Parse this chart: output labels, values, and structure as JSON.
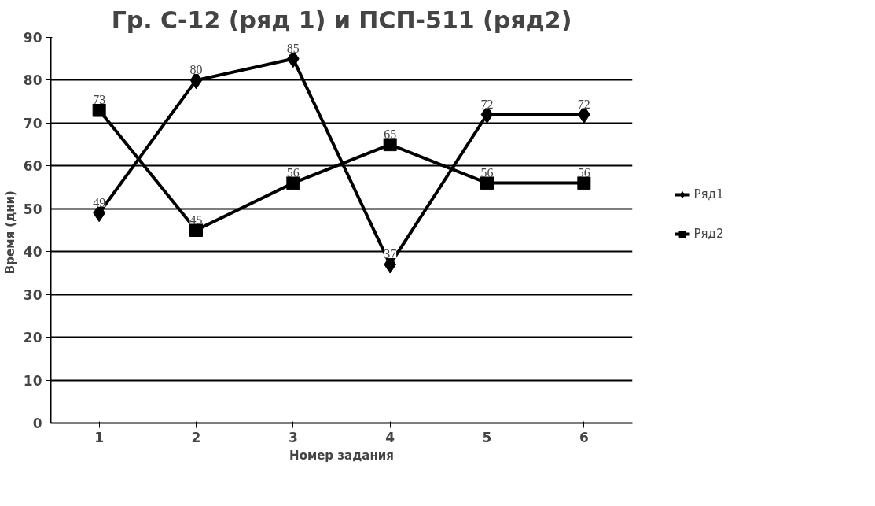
{
  "chart_data": {
    "type": "line",
    "title": "Гр. С-12 (ряд 1) и ПСП-511 (ряд2)",
    "xlabel": "Номер задания",
    "ylabel": "Время  (дни)",
    "categories": [
      "1",
      "2",
      "3",
      "4",
      "5",
      "6"
    ],
    "series": [
      {
        "name": "Ряд1",
        "color": "#000000",
        "marker": "diamond",
        "values": [
          49,
          80,
          85,
          37,
          72,
          72
        ]
      },
      {
        "name": "Ряд2",
        "color": "#000000",
        "marker": "square",
        "values": [
          73,
          45,
          56,
          65,
          56,
          56
        ]
      }
    ],
    "ylim": [
      0,
      90
    ],
    "yticks": [
      0,
      10,
      20,
      30,
      40,
      50,
      60,
      70,
      80,
      90
    ],
    "grid": "y",
    "legend": "right",
    "data_labels": true,
    "line_style": "solid"
  }
}
